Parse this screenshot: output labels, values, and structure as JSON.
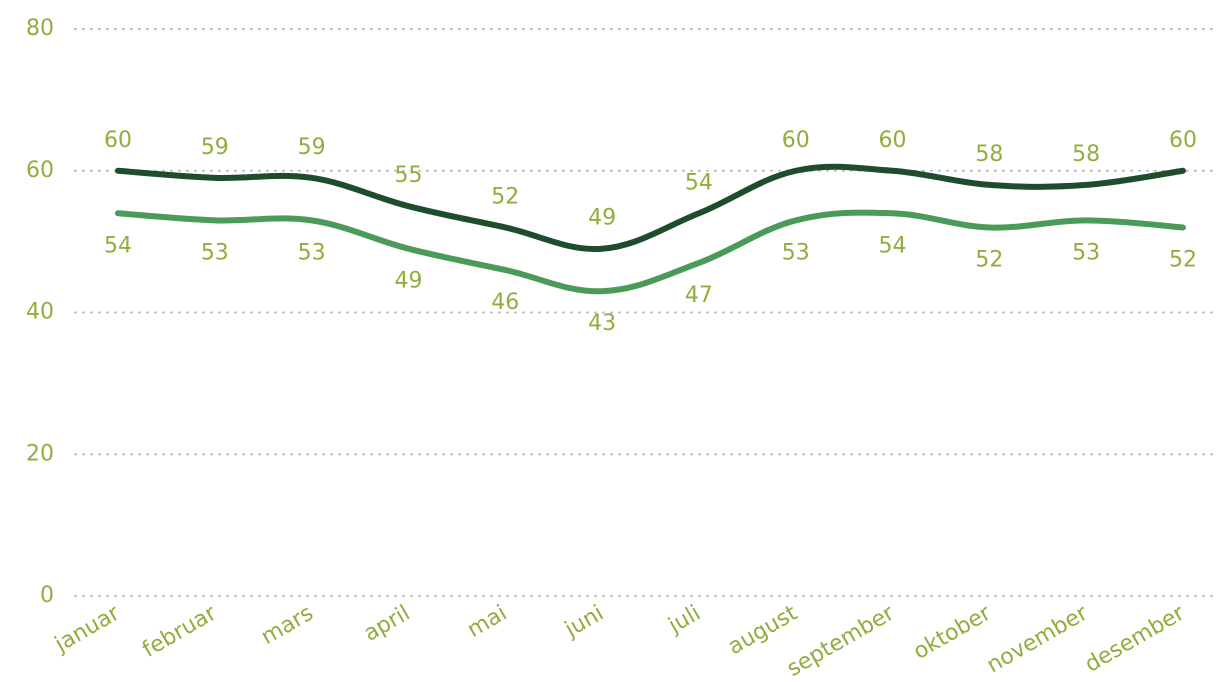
{
  "chart_data": {
    "type": "line",
    "categories": [
      "januar",
      "februar",
      "mars",
      "april",
      "mai",
      "juni",
      "juli",
      "august",
      "september",
      "oktober",
      "november",
      "desember"
    ],
    "series": [
      {
        "color": "#1e4d2b",
        "values": [
          60,
          59,
          59,
          55,
          52,
          49,
          54,
          60,
          60,
          58,
          58,
          60
        ],
        "label_position": "above"
      },
      {
        "color": "#4a9a5a",
        "values": [
          54,
          53,
          53,
          49,
          46,
          43,
          47,
          53,
          54,
          52,
          53,
          52
        ],
        "label_position": "below"
      }
    ],
    "ylim": [
      0,
      80
    ],
    "yticks": [
      0,
      20,
      40,
      60,
      80
    ],
    "grid": true,
    "label_color": "#8fae3e"
  }
}
